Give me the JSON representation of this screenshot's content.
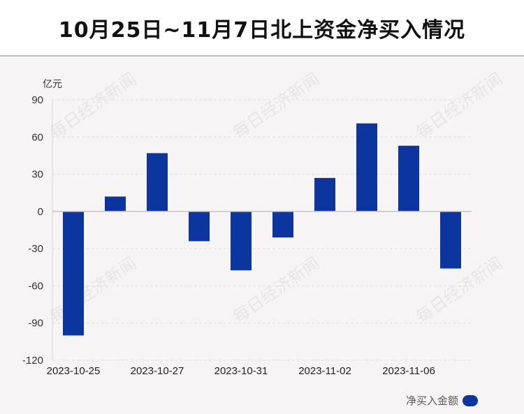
{
  "chart_data": {
    "type": "bar",
    "title": "10月25日~11月7日北上资金净买入情况",
    "ylabel": "亿元",
    "ylim": [
      -120,
      90
    ],
    "yticks": [
      90,
      60,
      30,
      0,
      -30,
      -60,
      -90,
      -120
    ],
    "x_tick_labels": [
      "2023-10-25",
      "2023-10-27",
      "2023-10-31",
      "2023-11-02",
      "2023-11-06"
    ],
    "grid": true,
    "legend_position": "bottom-right",
    "series": [
      {
        "name": "净买入金额",
        "color": "#0c35a0",
        "values": [
          -100,
          12,
          47,
          -24,
          -47.5,
          -21,
          27,
          71,
          53,
          -46
        ]
      }
    ]
  },
  "watermark": "每日经济新闻",
  "colors": {
    "bar": "#0c35a0",
    "background": "#f7f4f5",
    "title_bg": "#ffffff"
  }
}
